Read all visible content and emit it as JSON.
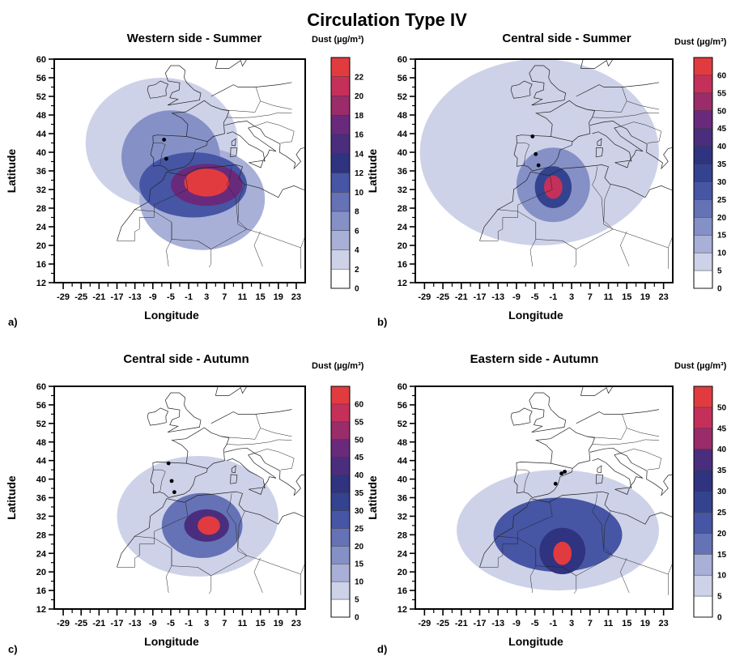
{
  "figure_title": "Circulation Type IV",
  "x_axis_title": "Longitude",
  "y_axis_title": "Latitude",
  "chart_data": [
    {
      "id": "a",
      "type": "heatmap",
      "panel_letter": "a)",
      "title": "Western side - Summer",
      "colorbar_title": "Dust (µg/m³)",
      "xlabel": "Longitude",
      "ylabel": "Latitude",
      "xlim": [
        -31,
        25
      ],
      "ylim": [
        12,
        60
      ],
      "x_ticks": [
        "-29",
        "-25",
        "-21",
        "-17",
        "-13",
        "-9",
        "-5",
        "-1",
        "3",
        "7",
        "11",
        "15",
        "19",
        "23"
      ],
      "y_ticks": [
        "12",
        "16",
        "20",
        "24",
        "28",
        "32",
        "36",
        "40",
        "44",
        "48",
        "52",
        "56",
        "60"
      ],
      "levels": [
        0,
        2,
        4,
        6,
        8,
        10,
        12,
        14,
        16,
        18,
        20,
        22
      ],
      "colorbar_max": 24,
      "blobs": [
        {
          "lon": -7,
          "lat": 42,
          "rx": 17,
          "ry": 14,
          "value": 3
        },
        {
          "lon": 2,
          "lat": 30,
          "rx": 14,
          "ry": 11,
          "value": 5
        },
        {
          "lon": -5,
          "lat": 39,
          "rx": 11,
          "ry": 10,
          "value": 6
        },
        {
          "lon": 0,
          "lat": 33,
          "rx": 12,
          "ry": 7,
          "value": 10
        },
        {
          "lon": 3,
          "lat": 33,
          "rx": 8,
          "ry": 4.5,
          "value": 16
        },
        {
          "lon": 3,
          "lat": 33.5,
          "rx": 5,
          "ry": 3,
          "value": 22
        }
      ],
      "sites": [
        {
          "lon": -6.5,
          "lat": 42.7
        },
        {
          "lon": -6.0,
          "lat": 38.6
        }
      ]
    },
    {
      "id": "b",
      "type": "heatmap",
      "panel_letter": "b)",
      "title": "Central side - Summer",
      "colorbar_title": "Dust (µg/m³)",
      "xlabel": "Longitude",
      "ylabel": "Latitude",
      "xlim": [
        -31,
        25
      ],
      "ylim": [
        12,
        60
      ],
      "x_ticks": [
        "-29",
        "-25",
        "-21",
        "-17",
        "-13",
        "-9",
        "-5",
        "-1",
        "3",
        "7",
        "11",
        "15",
        "19",
        "23"
      ],
      "y_ticks": [
        "12",
        "16",
        "20",
        "24",
        "28",
        "32",
        "36",
        "40",
        "44",
        "48",
        "52",
        "56",
        "60"
      ],
      "levels": [
        0,
        5,
        10,
        15,
        20,
        25,
        30,
        35,
        40,
        45,
        50,
        55,
        60
      ],
      "colorbar_max": 65,
      "blobs": [
        {
          "lon": -4,
          "lat": 40,
          "rx": 26,
          "ry": 20,
          "value": 7
        },
        {
          "lon": -1,
          "lat": 33,
          "rx": 8,
          "ry": 8,
          "value": 15
        },
        {
          "lon": -1,
          "lat": 32.5,
          "rx": 4,
          "ry": 4.5,
          "value": 30
        },
        {
          "lon": -1,
          "lat": 32.5,
          "rx": 2,
          "ry": 2.5,
          "value": 55
        }
      ],
      "sites": [
        {
          "lon": -5.5,
          "lat": 43.4
        },
        {
          "lon": -4.8,
          "lat": 39.6
        },
        {
          "lon": -4.2,
          "lat": 37.2
        }
      ]
    },
    {
      "id": "c",
      "type": "heatmap",
      "panel_letter": "c)",
      "title": "Central side - Autumn",
      "colorbar_title": "Dust (µg/m³)",
      "xlabel": "Longitude",
      "ylabel": "Latitude",
      "xlim": [
        -31,
        25
      ],
      "ylim": [
        12,
        60
      ],
      "x_ticks": [
        "-29",
        "-25",
        "-21",
        "-17",
        "-13",
        "-9",
        "-5",
        "-1",
        "3",
        "7",
        "11",
        "15",
        "19",
        "23"
      ],
      "y_ticks": [
        "12",
        "16",
        "20",
        "24",
        "28",
        "32",
        "36",
        "40",
        "44",
        "48",
        "52",
        "56",
        "60"
      ],
      "levels": [
        0,
        5,
        10,
        15,
        20,
        25,
        30,
        35,
        40,
        45,
        50,
        55,
        60
      ],
      "colorbar_max": 65,
      "blobs": [
        {
          "lon": 1,
          "lat": 32,
          "rx": 18,
          "ry": 13,
          "value": 7
        },
        {
          "lon": 2,
          "lat": 30,
          "rx": 9,
          "ry": 7,
          "value": 20
        },
        {
          "lon": 3,
          "lat": 30,
          "rx": 5,
          "ry": 3.5,
          "value": 40
        },
        {
          "lon": 3.5,
          "lat": 30,
          "rx": 2.5,
          "ry": 2,
          "value": 60
        }
      ],
      "sites": [
        {
          "lon": -5.5,
          "lat": 43.4
        },
        {
          "lon": -4.8,
          "lat": 39.6
        },
        {
          "lon": -4.2,
          "lat": 37.2
        }
      ]
    },
    {
      "id": "d",
      "type": "heatmap",
      "panel_letter": "d)",
      "title": "Eastern side - Autumn",
      "colorbar_title": "Dust (µg/m³)",
      "xlabel": "Longitude",
      "ylabel": "Latitude",
      "xlim": [
        -31,
        25
      ],
      "ylim": [
        12,
        60
      ],
      "x_ticks": [
        "-29",
        "-25",
        "-21",
        "-17",
        "-13",
        "-9",
        "-5",
        "-1",
        "3",
        "7",
        "11",
        "15",
        "19",
        "23"
      ],
      "y_ticks": [
        "12",
        "16",
        "20",
        "24",
        "28",
        "32",
        "36",
        "40",
        "44",
        "48",
        "52",
        "56",
        "60"
      ],
      "levels": [
        0,
        5,
        10,
        15,
        20,
        25,
        30,
        35,
        40,
        45,
        50
      ],
      "colorbar_max": 55,
      "blobs": [
        {
          "lon": 0,
          "lat": 29,
          "rx": 22,
          "ry": 13,
          "value": 7
        },
        {
          "lon": 0,
          "lat": 28,
          "rx": 14,
          "ry": 8,
          "value": 20
        },
        {
          "lon": 1,
          "lat": 24.5,
          "rx": 5,
          "ry": 5,
          "value": 30
        },
        {
          "lon": 1,
          "lat": 24,
          "rx": 2,
          "ry": 2.5,
          "value": 50
        }
      ],
      "sites": [
        {
          "lon": 1.5,
          "lat": 41.6
        },
        {
          "lon": 0.8,
          "lat": 41.2
        },
        {
          "lon": -0.5,
          "lat": 39.0
        }
      ]
    }
  ]
}
